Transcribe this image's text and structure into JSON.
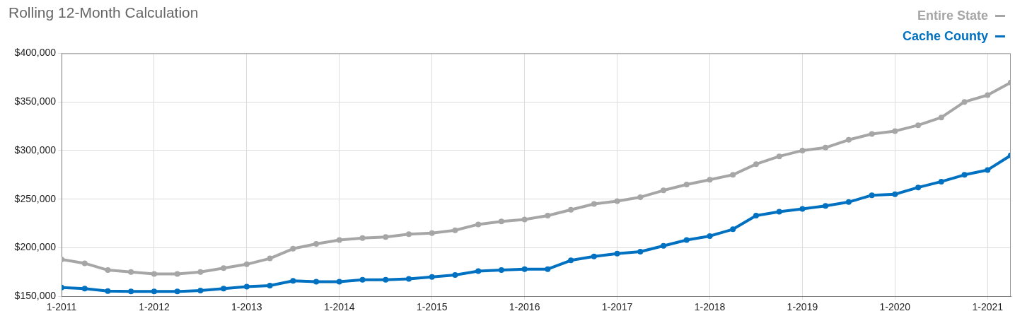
{
  "chart_data": {
    "type": "line",
    "title": "Rolling 12-Month Calculation",
    "x": [
      "2011-01",
      "2011-04",
      "2011-07",
      "2011-10",
      "2012-01",
      "2012-04",
      "2012-07",
      "2012-10",
      "2013-01",
      "2013-04",
      "2013-07",
      "2013-10",
      "2014-01",
      "2014-04",
      "2014-07",
      "2014-10",
      "2015-01",
      "2015-04",
      "2015-07",
      "2015-10",
      "2016-01",
      "2016-04",
      "2016-07",
      "2016-10",
      "2017-01",
      "2017-04",
      "2017-07",
      "2017-10",
      "2018-01",
      "2018-04",
      "2018-07",
      "2018-10",
      "2019-01",
      "2019-04",
      "2019-07",
      "2019-10",
      "2020-01",
      "2020-04",
      "2020-07",
      "2020-10",
      "2021-01",
      "2021-04"
    ],
    "series": [
      {
        "name": "Entire State",
        "color": "#a6a6a6",
        "values": [
          188000,
          184000,
          177000,
          175000,
          173000,
          173000,
          175000,
          179000,
          183000,
          189000,
          199000,
          204000,
          208000,
          210000,
          211000,
          214000,
          215000,
          218000,
          224000,
          227000,
          229000,
          233000,
          239000,
          245000,
          248000,
          252000,
          259000,
          265000,
          270000,
          275000,
          286000,
          294000,
          300000,
          303000,
          311000,
          317000,
          320000,
          326000,
          334000,
          350000,
          357000,
          370000
        ]
      },
      {
        "name": "Cache County",
        "color": "#0070c0",
        "values": [
          159000,
          158000,
          155500,
          155000,
          155000,
          155000,
          156000,
          158000,
          160000,
          161000,
          166000,
          165000,
          165000,
          167000,
          167000,
          168000,
          170000,
          172000,
          176000,
          177000,
          178000,
          178000,
          187000,
          191000,
          194000,
          196000,
          202000,
          208000,
          212000,
          219000,
          233000,
          237000,
          240000,
          243000,
          247000,
          254000,
          255000,
          262000,
          268000,
          275000,
          280000,
          295000
        ]
      }
    ],
    "xlim": [
      "2011-01",
      "2021-04"
    ],
    "xticks": [
      {
        "value": "2011-01",
        "label": "1-2011"
      },
      {
        "value": "2012-01",
        "label": "1-2012"
      },
      {
        "value": "2013-01",
        "label": "1-2013"
      },
      {
        "value": "2014-01",
        "label": "1-2014"
      },
      {
        "value": "2015-01",
        "label": "1-2015"
      },
      {
        "value": "2016-01",
        "label": "1-2016"
      },
      {
        "value": "2017-01",
        "label": "1-2017"
      },
      {
        "value": "2018-01",
        "label": "1-2018"
      },
      {
        "value": "2019-01",
        "label": "1-2019"
      },
      {
        "value": "2020-01",
        "label": "1-2020"
      },
      {
        "value": "2021-01",
        "label": "1-2021"
      }
    ],
    "ylim": [
      150000,
      400000
    ],
    "yticks": [
      {
        "value": 150000,
        "label": "$150,000"
      },
      {
        "value": 200000,
        "label": "$200,000"
      },
      {
        "value": 250000,
        "label": "$250,000"
      },
      {
        "value": 300000,
        "label": "$300,000"
      },
      {
        "value": 350000,
        "label": "$350,000"
      },
      {
        "value": 400000,
        "label": "$400,000"
      }
    ],
    "grid": true,
    "legend": "top right",
    "marker": "circle",
    "line_style": "solid"
  }
}
